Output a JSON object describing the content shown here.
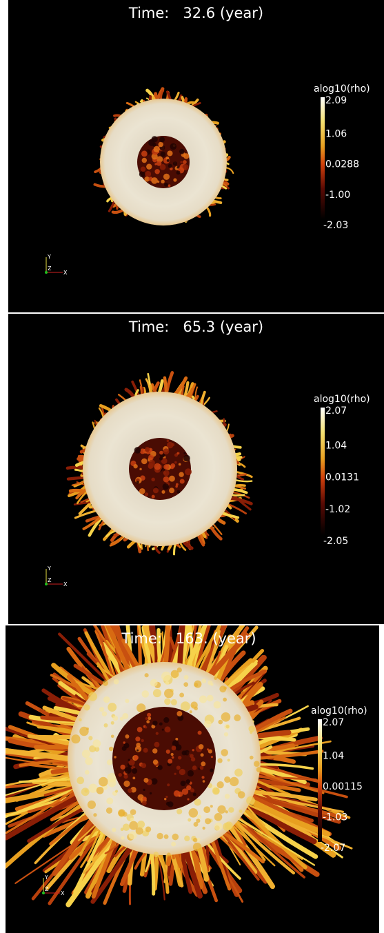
{
  "panels": [
    {
      "title": "Time:   32.6 (year)",
      "colorbar": {
        "title": "alog10(rho)",
        "labels": [
          "2.09",
          "1.06",
          "0.0288",
          "-1.00",
          "-2.03"
        ]
      },
      "axes": {
        "y": "Y",
        "z": "Z",
        "x": "X"
      }
    },
    {
      "title": "Time:   65.3 (year)",
      "colorbar": {
        "title": "alog10(rho)",
        "labels": [
          "2.07",
          "1.04",
          "0.0131",
          "-1.02",
          "-2.05"
        ]
      },
      "axes": {
        "y": "Y",
        "z": "Z",
        "x": "X"
      }
    },
    {
      "title": "Time:   163. (year)",
      "colorbar": {
        "title": "alog10(rho)",
        "labels": [
          "2.07",
          "1.04",
          "0.00115",
          "-1.03",
          "-2.07"
        ]
      },
      "axes": {
        "y": "Y",
        "z": "Z",
        "x": "X"
      }
    }
  ]
}
